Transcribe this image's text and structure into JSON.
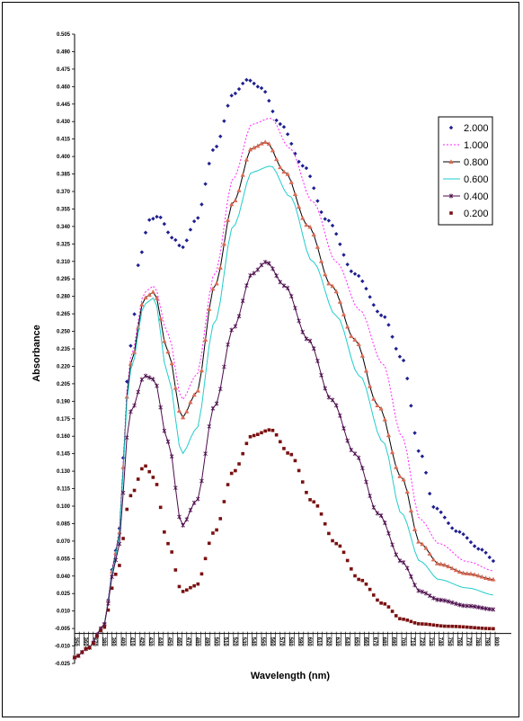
{
  "chart_data": {
    "type": "line",
    "title": "",
    "xlabel": "Wavelength (nm)",
    "ylabel": "Absorbance",
    "ylim": [
      -0.025,
      0.5
    ],
    "xlim": [
      350,
      800
    ],
    "y_tick_labels": [
      "-0.025",
      "-0.010",
      "-0.005",
      "0.010",
      "0.025",
      "0.040",
      "0.055",
      "0.070",
      "0.085",
      "0.100",
      "0.115",
      "0.130",
      "0.145",
      "0.160",
      "0.175",
      "0.190",
      "0.205",
      "0.220",
      "0.235",
      "0.250",
      "0.265",
      "0.280",
      "0.295",
      "0.310",
      "0.325",
      "0.340",
      "0.355",
      "0.370",
      "0.385",
      "0.400",
      "0.415",
      "0.430",
      "0.445",
      "0.460",
      "0.475",
      "0.490",
      "0.505"
    ],
    "legend_position": "right",
    "grid": false,
    "series": [
      {
        "name": "2.000",
        "color": "#1f1f8f",
        "marker": "diamond",
        "line": false,
        "points": [
          [
            350,
            -0.02
          ],
          [
            365,
            -0.012
          ],
          [
            380,
            0.005
          ],
          [
            395,
            0.07
          ],
          [
            410,
            0.24
          ],
          [
            420,
            0.315
          ],
          [
            430,
            0.345
          ],
          [
            440,
            0.348
          ],
          [
            455,
            0.33
          ],
          [
            465,
            0.322
          ],
          [
            480,
            0.345
          ],
          [
            500,
            0.405
          ],
          [
            520,
            0.45
          ],
          [
            535,
            0.462
          ],
          [
            550,
            0.455
          ],
          [
            570,
            0.425
          ],
          [
            595,
            0.39
          ],
          [
            620,
            0.345
          ],
          [
            650,
            0.3
          ],
          [
            680,
            0.265
          ],
          [
            700,
            0.23
          ],
          [
            720,
            0.15
          ],
          [
            735,
            0.105
          ],
          [
            760,
            0.085
          ],
          [
            785,
            0.07
          ],
          [
            800,
            0.06
          ]
        ]
      },
      {
        "name": "1.000",
        "color": "#ff22ff",
        "marker": "none",
        "line": true,
        "dashed": true,
        "points": [
          [
            350,
            -0.02
          ],
          [
            365,
            -0.012
          ],
          [
            380,
            0.005
          ],
          [
            395,
            0.07
          ],
          [
            410,
            0.23
          ],
          [
            425,
            0.285
          ],
          [
            435,
            0.29
          ],
          [
            450,
            0.25
          ],
          [
            465,
            0.195
          ],
          [
            480,
            0.215
          ],
          [
            500,
            0.3
          ],
          [
            520,
            0.38
          ],
          [
            540,
            0.425
          ],
          [
            560,
            0.43
          ],
          [
            580,
            0.405
          ],
          [
            605,
            0.36
          ],
          [
            630,
            0.31
          ],
          [
            655,
            0.27
          ],
          [
            680,
            0.225
          ],
          [
            700,
            0.165
          ],
          [
            720,
            0.095
          ],
          [
            740,
            0.075
          ],
          [
            770,
            0.06
          ],
          [
            800,
            0.052
          ]
        ]
      },
      {
        "name": "0.800",
        "color": "#000000",
        "marker": "triangle",
        "marker_color": "#d96a55",
        "line": true,
        "points": [
          [
            350,
            -0.02
          ],
          [
            365,
            -0.012
          ],
          [
            380,
            0.005
          ],
          [
            395,
            0.068
          ],
          [
            410,
            0.225
          ],
          [
            425,
            0.28
          ],
          [
            435,
            0.285
          ],
          [
            450,
            0.235
          ],
          [
            465,
            0.18
          ],
          [
            480,
            0.2
          ],
          [
            500,
            0.29
          ],
          [
            520,
            0.36
          ],
          [
            540,
            0.405
          ],
          [
            555,
            0.41
          ],
          [
            575,
            0.385
          ],
          [
            600,
            0.34
          ],
          [
            625,
            0.29
          ],
          [
            650,
            0.245
          ],
          [
            675,
            0.19
          ],
          [
            700,
            0.13
          ],
          [
            720,
            0.075
          ],
          [
            740,
            0.058
          ],
          [
            770,
            0.05
          ],
          [
            800,
            0.045
          ]
        ]
      },
      {
        "name": "0.600",
        "color": "#22cccc",
        "marker": "none",
        "line": true,
        "points": [
          [
            350,
            -0.02
          ],
          [
            365,
            -0.012
          ],
          [
            380,
            0.005
          ],
          [
            395,
            0.066
          ],
          [
            410,
            0.22
          ],
          [
            425,
            0.275
          ],
          [
            435,
            0.28
          ],
          [
            450,
            0.215
          ],
          [
            465,
            0.15
          ],
          [
            480,
            0.17
          ],
          [
            500,
            0.26
          ],
          [
            520,
            0.34
          ],
          [
            540,
            0.385
          ],
          [
            560,
            0.39
          ],
          [
            580,
            0.365
          ],
          [
            605,
            0.31
          ],
          [
            630,
            0.265
          ],
          [
            655,
            0.215
          ],
          [
            680,
            0.16
          ],
          [
            700,
            0.1
          ],
          [
            720,
            0.06
          ],
          [
            740,
            0.045
          ],
          [
            770,
            0.038
          ],
          [
            800,
            0.032
          ]
        ]
      },
      {
        "name": "0.400",
        "color": "#4b0b4b",
        "marker": "cross",
        "line": true,
        "points": [
          [
            350,
            -0.02
          ],
          [
            365,
            -0.012
          ],
          [
            380,
            0.005
          ],
          [
            395,
            0.062
          ],
          [
            410,
            0.185
          ],
          [
            425,
            0.215
          ],
          [
            435,
            0.212
          ],
          [
            450,
            0.16
          ],
          [
            465,
            0.09
          ],
          [
            480,
            0.11
          ],
          [
            500,
            0.19
          ],
          [
            520,
            0.255
          ],
          [
            540,
            0.3
          ],
          [
            555,
            0.31
          ],
          [
            575,
            0.29
          ],
          [
            600,
            0.245
          ],
          [
            625,
            0.195
          ],
          [
            650,
            0.15
          ],
          [
            675,
            0.1
          ],
          [
            700,
            0.06
          ],
          [
            720,
            0.035
          ],
          [
            740,
            0.028
          ],
          [
            770,
            0.023
          ],
          [
            800,
            0.02
          ]
        ]
      },
      {
        "name": "0.200",
        "color": "#7a1010",
        "marker": "square",
        "line": false,
        "points": [
          [
            350,
            -0.02
          ],
          [
            365,
            -0.012
          ],
          [
            380,
            0.003
          ],
          [
            395,
            0.05
          ],
          [
            410,
            0.115
          ],
          [
            425,
            0.14
          ],
          [
            435,
            0.13
          ],
          [
            450,
            0.075
          ],
          [
            465,
            0.035
          ],
          [
            480,
            0.04
          ],
          [
            500,
            0.085
          ],
          [
            520,
            0.135
          ],
          [
            540,
            0.165
          ],
          [
            560,
            0.17
          ],
          [
            580,
            0.15
          ],
          [
            605,
            0.11
          ],
          [
            630,
            0.075
          ],
          [
            655,
            0.045
          ],
          [
            680,
            0.025
          ],
          [
            700,
            0.012
          ],
          [
            720,
            0.008
          ],
          [
            750,
            0.006
          ],
          [
            800,
            0.004
          ]
        ]
      }
    ]
  }
}
